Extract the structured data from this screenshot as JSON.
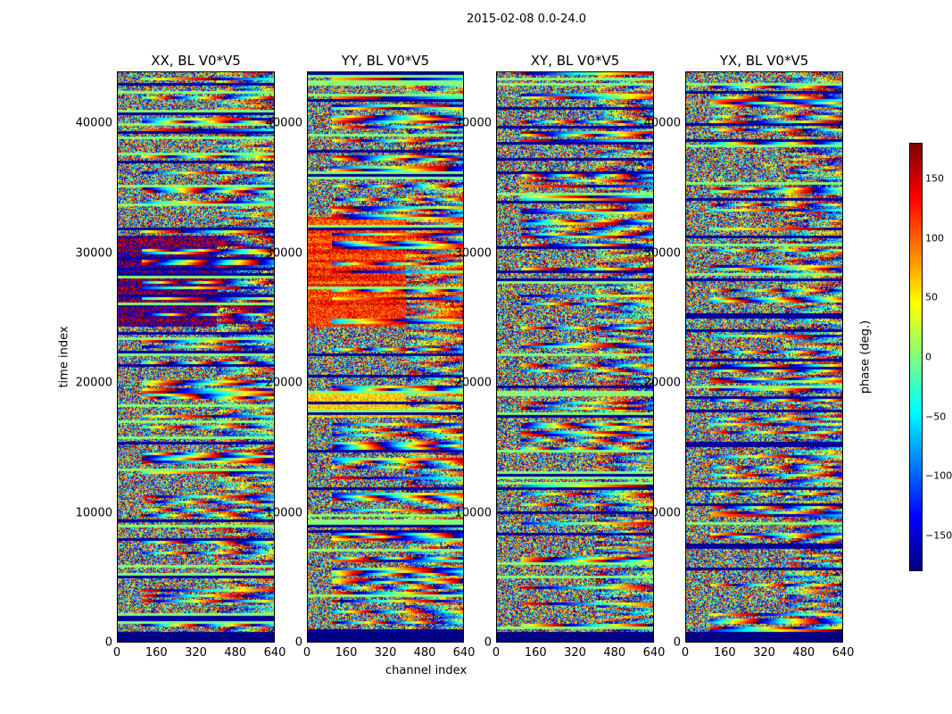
{
  "suptitle": "2015-02-08 0.0-24.0",
  "chart_data": {
    "type": "heatmap",
    "xlabel": "channel index",
    "ylabel": "time index",
    "xlim": [
      0,
      640
    ],
    "ylim": [
      0,
      44000
    ],
    "xticks": [
      "0",
      "160",
      "320",
      "480",
      "640"
    ],
    "yticks": [
      "0",
      "10000",
      "20000",
      "30000",
      "40000"
    ],
    "panels": [
      {
        "title": "XX, BL V0*V5"
      },
      {
        "title": "YY, BL V0*V5"
      },
      {
        "title": "XY, BL V0*V5"
      },
      {
        "title": "YX, BL V0*V5"
      }
    ],
    "colorbar": {
      "label": "phase (deg.)",
      "range": [
        -180,
        180
      ],
      "ticks": [
        "150",
        "100",
        "50",
        "0",
        "−50",
        "−100",
        "−150"
      ],
      "tick_values": [
        150,
        100,
        50,
        0,
        -50,
        -100,
        -150
      ],
      "colormap": "jet"
    }
  }
}
